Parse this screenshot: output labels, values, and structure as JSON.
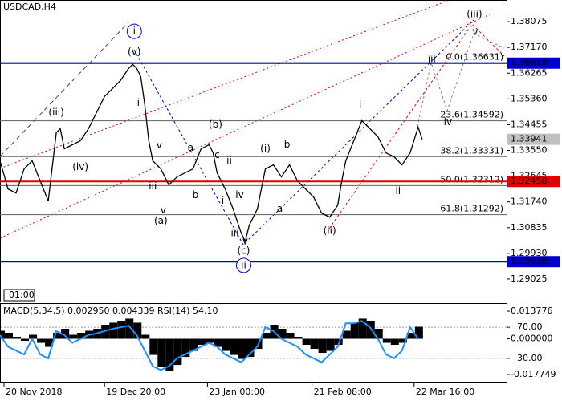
{
  "chart_data": [
    {
      "type": "line",
      "title": "USDCAD,H4",
      "color": "#000000",
      "x": [
        0,
        2,
        4,
        6,
        8,
        10,
        12,
        14,
        15,
        16,
        18,
        20,
        22,
        24,
        26,
        28,
        30,
        32,
        33,
        34,
        35,
        36,
        37,
        38,
        40,
        42,
        44,
        46,
        48,
        50,
        52,
        53,
        54,
        56,
        58,
        60,
        61,
        62,
        64,
        66,
        68,
        70,
        72,
        74,
        76,
        78,
        80,
        82,
        84,
        85,
        86,
        88,
        90,
        92,
        94,
        96,
        98,
        100,
        102,
        104,
        105
      ],
      "values": [
        1.33182,
        1.32193,
        1.32051,
        1.329,
        1.33182,
        1.32475,
        1.31769,
        1.34172,
        1.34314,
        1.33607,
        1.33748,
        1.3389,
        1.34314,
        1.34879,
        1.35445,
        1.35728,
        1.36011,
        1.36435,
        1.36576,
        1.36435,
        1.36152,
        1.35162,
        1.3389,
        1.33182,
        1.329,
        1.32334,
        1.32617,
        1.32758,
        1.329,
        1.33607,
        1.33748,
        1.33465,
        1.32758,
        1.32193,
        1.31486,
        1.30637,
        1.30355,
        1.3092,
        1.31486,
        1.329,
        1.33041,
        1.32617,
        1.33041,
        1.32475,
        1.32193,
        1.3191,
        1.31344,
        1.31203,
        1.31627,
        1.32475,
        1.33182,
        1.3389,
        1.34597,
        1.34314,
        1.34031,
        1.33465,
        1.33324,
        1.33041,
        1.33465,
        1.3437,
        1.33941
      ],
      "xlim": [
        0,
        126
      ],
      "ylim": [
        1.28234,
        1.38839
      ],
      "yticks": [
        1.38075,
        {
          "value": 1.3717,
          "label": "1.37170"
        },
        1.36265,
        {
          "value": 1.3536,
          "label": "1.35360"
        },
        1.34455,
        {
          "value": 1.3355,
          "label": "1.33550"
        },
        1.32645,
        {
          "value": 1.3174,
          "label": "1.31740"
        },
        1.30835,
        {
          "value": 1.2993,
          "label": "1.29930"
        },
        1.29025
      ],
      "xticks": [
        {
          "value": 1,
          "label": "20 Nov 2018"
        },
        {
          "value": 26,
          "label": "19 Dec 20:00"
        },
        {
          "value": 51.6,
          "label": "23 Jan 00:00"
        },
        {
          "value": 77.6,
          "label": "21 Feb 08:00"
        },
        {
          "value": 103,
          "label": "22 Mar 16:00"
        }
      ],
      "hlines": [
        {
          "value": 1.36618,
          "color": "#0000cc"
        },
        {
          "value": 1.32458,
          "color": "#e00000"
        },
        {
          "value": 1.29638,
          "color": "#0000cc"
        }
      ],
      "last_price": {
        "value": 1.33941,
        "color": "#c0c0c0"
      },
      "fib_levels": [
        {
          "label": "0.0(1.36631)",
          "value": 1.36631
        },
        {
          "label": "23.6(1.34592)",
          "value": 1.34592
        },
        {
          "label": "38.2(1.33331)",
          "value": 1.33331
        },
        {
          "label": "50.0(1.32312)",
          "value": 1.32312
        },
        {
          "label": "61.8(1.31292)",
          "value": 1.31292
        }
      ],
      "annotations": [
        {
          "text": "i",
          "x": 33.4,
          "y": 1.37736,
          "color": "#0000cc",
          "circle": true
        },
        {
          "text": "ii",
          "x": 60.6,
          "y": 1.29506,
          "color": "#0000cc",
          "circle": true
        },
        {
          "text": "(v)",
          "x": 33.4,
          "y": 1.37,
          "color": "#e00000"
        },
        {
          "text": "(iii)",
          "x": 14,
          "y": 1.34879,
          "color": "#e00000"
        },
        {
          "text": "(iv)",
          "x": 20,
          "y": 1.32956,
          "color": "#e00000"
        },
        {
          "text": "(a)",
          "x": 40,
          "y": 1.31062,
          "color": "#e00000"
        },
        {
          "text": "(b)",
          "x": 53.6,
          "y": 1.34455,
          "color": "#e00000"
        },
        {
          "text": "(c)",
          "x": 60.6,
          "y": 1.30015,
          "color": "#e00000"
        },
        {
          "text": "(i)",
          "x": 66,
          "y": 1.33607,
          "color": "#e00000"
        },
        {
          "text": "(ii)",
          "x": 82,
          "y": 1.30722,
          "color": "#e00000"
        },
        {
          "text": "(iii)",
          "x": 118,
          "y": 1.3833,
          "color": "#e00000"
        },
        {
          "text": "i",
          "x": 34.4,
          "y": 1.35219,
          "color": "#808080"
        },
        {
          "text": "v",
          "x": 39.6,
          "y": 1.3372,
          "color": "#808080"
        },
        {
          "text": "iii",
          "x": 38,
          "y": 1.32278,
          "color": "#808080"
        },
        {
          "text": "v",
          "x": 40.6,
          "y": 1.31429,
          "color": "#808080"
        },
        {
          "text": "a",
          "x": 47.4,
          "y": 1.33635,
          "color": "#808080"
        },
        {
          "text": "b",
          "x": 48.6,
          "y": 1.31967,
          "color": "#808080"
        },
        {
          "text": "c",
          "x": 54,
          "y": 1.33381,
          "color": "#808080"
        },
        {
          "text": "ii",
          "x": 57,
          "y": 1.33183,
          "color": "#808080"
        },
        {
          "text": "i",
          "x": 55.4,
          "y": 1.31769,
          "color": "#808080"
        },
        {
          "text": "iv",
          "x": 59.6,
          "y": 1.31967,
          "color": "#808080"
        },
        {
          "text": "iii",
          "x": 58.4,
          "y": 1.30637,
          "color": "#808080"
        },
        {
          "text": "v",
          "x": 61,
          "y": 1.30355,
          "color": "#808080"
        },
        {
          "text": "b",
          "x": 71.4,
          "y": 1.33748,
          "color": "#808080"
        },
        {
          "text": "a",
          "x": 69.6,
          "y": 1.31486,
          "color": "#808080"
        },
        {
          "text": "i",
          "x": 89.6,
          "y": 1.35134,
          "color": "#808080"
        },
        {
          "text": "ii",
          "x": 99,
          "y": 1.32108,
          "color": "#808080"
        },
        {
          "text": "iii",
          "x": 107.4,
          "y": 1.36746,
          "color": "#808080"
        },
        {
          "text": "iv",
          "x": 111.4,
          "y": 1.3454,
          "color": "#808080"
        },
        {
          "text": "v",
          "x": 118.2,
          "y": 1.37707,
          "color": "#808080"
        }
      ]
    },
    {
      "type": "bar",
      "title": "MACD(5,34,5) 0.002950 0.004339 RSI(14) 54.10",
      "x": [
        0,
        2,
        4,
        6,
        8,
        10,
        12,
        14,
        16,
        18,
        20,
        22,
        24,
        26,
        28,
        30,
        32,
        34,
        36,
        38,
        40,
        42,
        44,
        46,
        48,
        50,
        52,
        54,
        56,
        58,
        60,
        62,
        64,
        66,
        68,
        70,
        72,
        74,
        76,
        78,
        80,
        82,
        84,
        86,
        88,
        90,
        92,
        94,
        96,
        98,
        100,
        102,
        104
      ],
      "series": [
        {
          "color": "#000000",
          "values": [
            0.004,
            0.003,
            0.001,
            -0.001,
            0.002,
            -0.002,
            -0.004,
            0.003,
            0.005,
            0.002,
            0.003,
            0.004,
            0.005,
            0.007,
            0.008,
            0.009,
            0.01,
            0.008,
            0.002,
            -0.008,
            -0.014,
            -0.016,
            -0.013,
            -0.009,
            -0.006,
            -0.003,
            -0.002,
            -0.004,
            -0.006,
            -0.008,
            -0.01,
            -0.009,
            -0.005,
            0.003,
            0.007,
            0.005,
            0.003,
            0.001,
            -0.003,
            -0.005,
            -0.007,
            -0.006,
            -0.003,
            0.004,
            0.008,
            0.01,
            0.009,
            0.005,
            -0.002,
            -0.003,
            -0.002,
            0.003,
            0.006
          ]
        },
        {
          "color": "#1e90ff",
          "axis": "y2",
          "values": [
            60,
            45,
            40,
            35,
            55,
            35,
            30,
            65,
            60,
            50,
            55,
            60,
            62,
            65,
            68,
            70,
            72,
            60,
            40,
            20,
            15,
            20,
            30,
            35,
            40,
            45,
            50,
            45,
            35,
            30,
            25,
            35,
            45,
            70,
            65,
            55,
            50,
            45,
            35,
            30,
            25,
            35,
            45,
            75,
            75,
            78,
            70,
            55,
            35,
            30,
            40,
            70,
            55
          ]
        }
      ],
      "xlim": [
        0,
        126
      ],
      "ylim": [
        -0.02134,
        0.017367
      ],
      "yticks": [
        0.013776,
        {
          "value": 0,
          "label": "0.000000"
        },
        -0.017749
      ],
      "y2lim": [
        0,
        100
      ],
      "y2ticks": [
        {
          "value": 70,
          "label": "70.00"
        },
        {
          "value": 30,
          "label": "30.00"
        }
      ]
    }
  ]
}
